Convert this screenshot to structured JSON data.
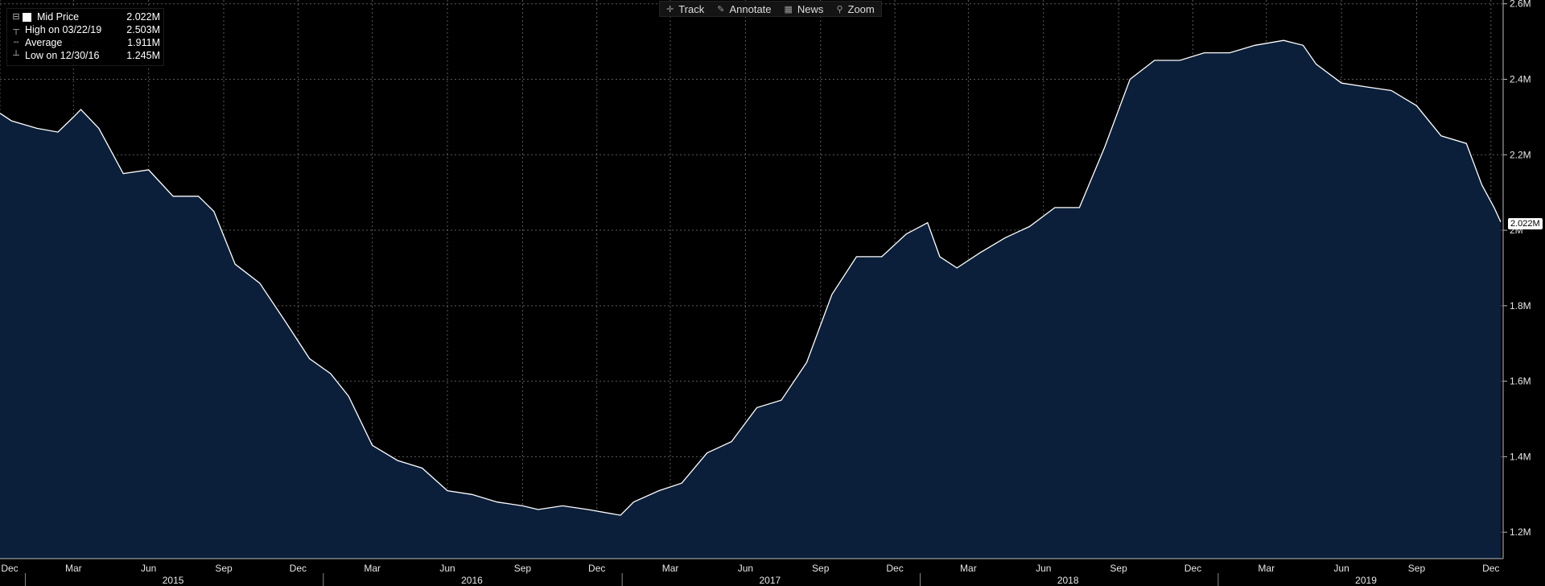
{
  "legend": {
    "rows": [
      {
        "label": "Mid Price",
        "value": "2.022M"
      },
      {
        "label": "High on 03/22/19",
        "value": "2.503M"
      },
      {
        "label": "Average",
        "value": "1.911M"
      },
      {
        "label": "Low on 12/30/16",
        "value": "1.245M"
      }
    ]
  },
  "toolbar": {
    "track": "Track",
    "annotate": "Annotate",
    "news": "News",
    "zoom": "Zoom"
  },
  "last_value_label": "2.022M",
  "colors": {
    "background": "#000000",
    "area_fill": "#0b1f3a",
    "line": "#ffffff",
    "grid": "#7a7a7a"
  },
  "chart_data": {
    "type": "area",
    "series": [
      {
        "name": "Mid Price",
        "points": [
          [
            "2014-12-01",
            2.31
          ],
          [
            "2014-12-15",
            2.29
          ],
          [
            "2015-01-15",
            2.27
          ],
          [
            "2015-02-10",
            2.26
          ],
          [
            "2015-03-01",
            2.3
          ],
          [
            "2015-03-10",
            2.32
          ],
          [
            "2015-04-01",
            2.27
          ],
          [
            "2015-05-01",
            2.15
          ],
          [
            "2015-06-01",
            2.16
          ],
          [
            "2015-07-01",
            2.09
          ],
          [
            "2015-08-01",
            2.09
          ],
          [
            "2015-08-20",
            2.05
          ],
          [
            "2015-09-15",
            1.91
          ],
          [
            "2015-10-15",
            1.86
          ],
          [
            "2015-11-15",
            1.76
          ],
          [
            "2015-12-15",
            1.66
          ],
          [
            "2016-01-10",
            1.62
          ],
          [
            "2016-02-01",
            1.56
          ],
          [
            "2016-03-01",
            1.43
          ],
          [
            "2016-04-01",
            1.39
          ],
          [
            "2016-05-01",
            1.37
          ],
          [
            "2016-06-01",
            1.31
          ],
          [
            "2016-07-01",
            1.3
          ],
          [
            "2016-08-01",
            1.28
          ],
          [
            "2016-09-01",
            1.27
          ],
          [
            "2016-09-20",
            1.26
          ],
          [
            "2016-10-20",
            1.27
          ],
          [
            "2016-11-20",
            1.26
          ],
          [
            "2016-12-30",
            1.245
          ],
          [
            "2017-01-15",
            1.28
          ],
          [
            "2017-02-15",
            1.31
          ],
          [
            "2017-03-15",
            1.33
          ],
          [
            "2017-04-15",
            1.41
          ],
          [
            "2017-05-15",
            1.44
          ],
          [
            "2017-06-15",
            1.53
          ],
          [
            "2017-07-15",
            1.55
          ],
          [
            "2017-08-15",
            1.65
          ],
          [
            "2017-09-15",
            1.83
          ],
          [
            "2017-10-15",
            1.93
          ],
          [
            "2017-11-15",
            1.93
          ],
          [
            "2017-12-15",
            1.99
          ],
          [
            "2018-01-10",
            2.02
          ],
          [
            "2018-01-25",
            1.93
          ],
          [
            "2018-02-15",
            1.9
          ],
          [
            "2018-03-15",
            1.94
          ],
          [
            "2018-04-15",
            1.98
          ],
          [
            "2018-05-15",
            2.01
          ],
          [
            "2018-06-15",
            2.06
          ],
          [
            "2018-07-15",
            2.06
          ],
          [
            "2018-08-15",
            2.22
          ],
          [
            "2018-09-15",
            2.4
          ],
          [
            "2018-10-15",
            2.45
          ],
          [
            "2018-11-15",
            2.45
          ],
          [
            "2018-12-15",
            2.47
          ],
          [
            "2019-01-15",
            2.47
          ],
          [
            "2019-02-15",
            2.49
          ],
          [
            "2019-03-22",
            2.503
          ],
          [
            "2019-04-15",
            2.49
          ],
          [
            "2019-05-01",
            2.44
          ],
          [
            "2019-06-01",
            2.39
          ],
          [
            "2019-07-01",
            2.38
          ],
          [
            "2019-08-01",
            2.37
          ],
          [
            "2019-09-01",
            2.33
          ],
          [
            "2019-10-01",
            2.25
          ],
          [
            "2019-11-01",
            2.23
          ],
          [
            "2019-11-20",
            2.12
          ],
          [
            "2019-12-05",
            2.06
          ],
          [
            "2019-12-13",
            2.022
          ]
        ]
      }
    ],
    "ylim": [
      1.13,
      2.61
    ],
    "xlim": [
      "2014-12-01",
      "2019-12-16"
    ],
    "y_ticks": [
      {
        "value": 1.2,
        "label": "1.2M"
      },
      {
        "value": 1.4,
        "label": "1.4M"
      },
      {
        "value": 1.6,
        "label": "1.6M"
      },
      {
        "value": 1.8,
        "label": "1.8M"
      },
      {
        "value": 2.0,
        "label": "2M"
      },
      {
        "value": 2.2,
        "label": "2.2M"
      },
      {
        "value": 2.4,
        "label": "2.4M"
      },
      {
        "value": 2.6,
        "label": "2.6M"
      }
    ],
    "x_month_ticks": [
      {
        "date": "2014-12-01",
        "label": "Dec"
      },
      {
        "date": "2015-03-01",
        "label": "Mar"
      },
      {
        "date": "2015-06-01",
        "label": "Jun"
      },
      {
        "date": "2015-09-01",
        "label": "Sep"
      },
      {
        "date": "2015-12-01",
        "label": "Dec"
      },
      {
        "date": "2016-03-01",
        "label": "Mar"
      },
      {
        "date": "2016-06-01",
        "label": "Jun"
      },
      {
        "date": "2016-09-01",
        "label": "Sep"
      },
      {
        "date": "2016-12-01",
        "label": "Dec"
      },
      {
        "date": "2017-03-01",
        "label": "Mar"
      },
      {
        "date": "2017-06-01",
        "label": "Jun"
      },
      {
        "date": "2017-09-01",
        "label": "Sep"
      },
      {
        "date": "2017-12-01",
        "label": "Dec"
      },
      {
        "date": "2018-03-01",
        "label": "Mar"
      },
      {
        "date": "2018-06-01",
        "label": "Jun"
      },
      {
        "date": "2018-09-01",
        "label": "Sep"
      },
      {
        "date": "2018-12-01",
        "label": "Dec"
      },
      {
        "date": "2019-03-01",
        "label": "Mar"
      },
      {
        "date": "2019-06-01",
        "label": "Jun"
      },
      {
        "date": "2019-09-01",
        "label": "Sep"
      },
      {
        "date": "2019-12-01",
        "label": "Dec"
      }
    ],
    "x_year_labels": [
      {
        "date": "2015-07-01",
        "label": "2015"
      },
      {
        "date": "2016-07-01",
        "label": "2016"
      },
      {
        "date": "2017-07-01",
        "label": "2017"
      },
      {
        "date": "2018-07-01",
        "label": "2018"
      },
      {
        "date": "2019-07-01",
        "label": "2019"
      }
    ],
    "year_boundaries": [
      "2015-01-01",
      "2016-01-01",
      "2017-01-01",
      "2018-01-01",
      "2019-01-01"
    ],
    "grid": true,
    "legend_position": "top-left"
  }
}
